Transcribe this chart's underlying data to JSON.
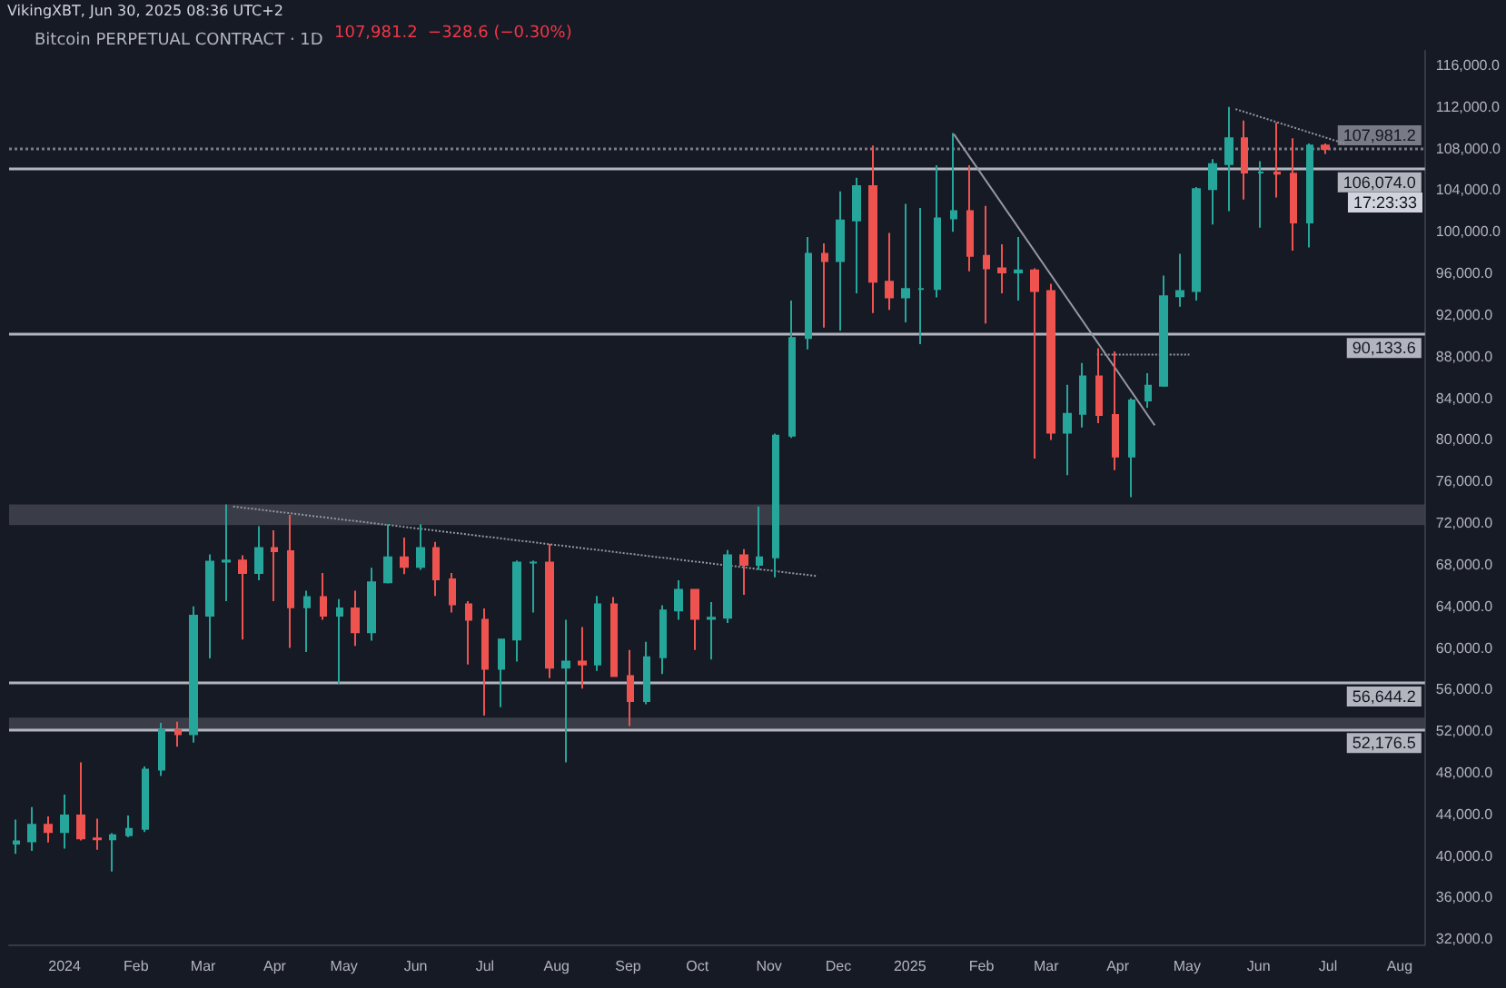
{
  "chart_data": {
    "type": "candlestick",
    "title": "Bitcoin PERPETUAL CONTRACT · 1D",
    "annotations": [
      "VikingXBT, Jun 30, 2025 08:36 UTC+2",
      "107,981.2  −328.6 (−0.30%)",
      "17:23:33"
    ],
    "x": [
      "2023-12-11",
      "2023-12-18",
      "2023-12-25",
      "2024-01-01",
      "2024-01-08",
      "2024-01-15",
      "2024-01-22",
      "2024-01-29",
      "2024-02-05",
      "2024-02-12",
      "2024-02-19",
      "2024-02-26",
      "2024-03-04",
      "2024-03-11",
      "2024-03-18",
      "2024-03-25",
      "2024-04-01",
      "2024-04-08",
      "2024-04-15",
      "2024-04-22",
      "2024-04-29",
      "2024-05-06",
      "2024-05-13",
      "2024-05-20",
      "2024-05-27",
      "2024-06-03",
      "2024-06-10",
      "2024-06-17",
      "2024-06-24",
      "2024-07-01",
      "2024-07-08",
      "2024-07-15",
      "2024-07-22",
      "2024-07-29",
      "2024-08-05",
      "2024-08-12",
      "2024-08-19",
      "2024-08-26",
      "2024-09-02",
      "2024-09-09",
      "2024-09-16",
      "2024-09-23",
      "2024-09-30",
      "2024-10-07",
      "2024-10-14",
      "2024-10-21",
      "2024-10-28",
      "2024-11-04",
      "2024-11-11",
      "2024-11-18",
      "2024-11-25",
      "2024-12-02",
      "2024-12-09",
      "2024-12-16",
      "2024-12-23",
      "2024-12-30",
      "2025-01-06",
      "2025-01-13",
      "2025-01-20",
      "2025-01-27",
      "2025-02-03",
      "2025-02-10",
      "2025-02-17",
      "2025-02-24",
      "2025-03-03",
      "2025-03-10",
      "2025-03-17",
      "2025-03-24",
      "2025-03-31",
      "2025-04-07",
      "2025-04-14",
      "2025-04-21",
      "2025-04-28",
      "2025-05-05",
      "2025-05-12",
      "2025-05-19",
      "2025-05-26",
      "2025-06-02",
      "2025-06-09",
      "2025-06-16",
      "2025-06-23",
      "2025-06-30"
    ],
    "ohlc": [
      [
        41200,
        43500,
        40200,
        41400
      ],
      [
        41400,
        44700,
        40500,
        43000
      ],
      [
        43000,
        43800,
        41300,
        42300
      ],
      [
        42300,
        45900,
        40700,
        43900
      ],
      [
        43900,
        49000,
        41500,
        41700
      ],
      [
        41700,
        43600,
        40600,
        41600
      ],
      [
        41600,
        42200,
        38500,
        42000
      ],
      [
        42000,
        43900,
        41800,
        42600
      ],
      [
        42600,
        48600,
        42300,
        48300
      ],
      [
        48300,
        52800,
        47700,
        52100
      ],
      [
        52100,
        52900,
        50500,
        51700
      ],
      [
        51700,
        64000,
        50900,
        63100
      ],
      [
        63100,
        69000,
        59000,
        68300
      ],
      [
        68300,
        73800,
        64500,
        68400
      ],
      [
        68400,
        68900,
        60800,
        67200
      ],
      [
        67200,
        71700,
        66500,
        69600
      ],
      [
        69600,
        71300,
        64500,
        69300
      ],
      [
        69300,
        72800,
        60000,
        63900
      ],
      [
        63900,
        65500,
        59600,
        64900
      ],
      [
        64900,
        67200,
        62700,
        63100
      ],
      [
        63100,
        64700,
        56500,
        63800
      ],
      [
        63800,
        65500,
        60200,
        61500
      ],
      [
        61500,
        67700,
        60700,
        66300
      ],
      [
        66300,
        71900,
        66200,
        68700
      ],
      [
        68700,
        70600,
        67100,
        67800
      ],
      [
        67800,
        71900,
        67500,
        69600
      ],
      [
        69600,
        70200,
        65000,
        66600
      ],
      [
        66600,
        67200,
        63400,
        64200
      ],
      [
        64200,
        64500,
        58400,
        62700
      ],
      [
        62700,
        63800,
        53500,
        58000
      ],
      [
        58000,
        60800,
        54300,
        60800
      ],
      [
        60800,
        68400,
        58700,
        68200
      ],
      [
        68200,
        68400,
        63400,
        68200
      ],
      [
        68200,
        70000,
        57100,
        58100
      ],
      [
        58100,
        62700,
        49000,
        58700
      ],
      [
        58700,
        62000,
        56100,
        58400
      ],
      [
        58400,
        65000,
        57800,
        64200
      ],
      [
        64200,
        64900,
        57200,
        57300
      ],
      [
        57300,
        59800,
        52500,
        54900
      ],
      [
        54900,
        60600,
        54600,
        59100
      ],
      [
        59100,
        64100,
        57500,
        63600
      ],
      [
        63600,
        66500,
        62700,
        65600
      ],
      [
        65600,
        65600,
        59800,
        62800
      ],
      [
        62800,
        64400,
        58900,
        62900
      ],
      [
        62900,
        69400,
        62400,
        68900
      ],
      [
        68900,
        69500,
        65100,
        68000
      ],
      [
        68000,
        73600,
        67500,
        68700
      ],
      [
        68700,
        80600,
        66800,
        80400
      ],
      [
        80400,
        93400,
        80200,
        89800
      ],
      [
        89800,
        99500,
        88700,
        97900
      ],
      [
        97900,
        98900,
        90800,
        97200
      ],
      [
        97200,
        103900,
        90500,
        101100
      ],
      [
        101100,
        105200,
        94100,
        104400
      ],
      [
        104400,
        108300,
        92200,
        95200
      ],
      [
        95200,
        99900,
        92500,
        93700
      ],
      [
        93700,
        102700,
        91300,
        94500
      ],
      [
        94500,
        102300,
        89200,
        94500
      ],
      [
        94500,
        106400,
        93700,
        101300
      ],
      [
        101300,
        109500,
        100000,
        102000
      ],
      [
        102000,
        106400,
        96200,
        97700
      ],
      [
        97700,
        102500,
        91200,
        96500
      ],
      [
        96500,
        98800,
        94100,
        96100
      ],
      [
        96100,
        99500,
        93400,
        96300
      ],
      [
        96300,
        96500,
        78200,
        94300
      ],
      [
        94300,
        95000,
        80000,
        80700
      ],
      [
        80700,
        85300,
        76600,
        82500
      ],
      [
        82500,
        87400,
        81200,
        86100
      ],
      [
        86100,
        88800,
        81600,
        82400
      ],
      [
        82400,
        88500,
        77100,
        78400
      ],
      [
        78400,
        84000,
        74500,
        83800
      ],
      [
        83800,
        86400,
        83100,
        85200
      ],
      [
        85200,
        95800,
        85100,
        93800
      ],
      [
        93800,
        97900,
        92800,
        94300
      ],
      [
        94300,
        104300,
        93400,
        104100
      ],
      [
        104100,
        107000,
        100700,
        106500
      ],
      [
        106500,
        112000,
        102000,
        109000
      ],
      [
        109000,
        110700,
        103100,
        105700
      ],
      [
        105700,
        106800,
        100400,
        105700
      ],
      [
        105700,
        110500,
        103300,
        105600
      ],
      [
        105600,
        109000,
        98200,
        100900
      ],
      [
        100900,
        108500,
        98500,
        108300
      ],
      [
        108300,
        108500,
        107500,
        107981.2
      ]
    ],
    "colors": [
      "#26a69a",
      "#26a69a",
      "#ef5350",
      "#26a69a",
      "#ef5350",
      "#ef5350",
      "#26a69a",
      "#26a69a",
      "#26a69a",
      "#26a69a",
      "#ef5350",
      "#26a69a",
      "#26a69a",
      "#26a69a",
      "#ef5350",
      "#26a69a",
      "#ef5350",
      "#ef5350",
      "#26a69a",
      "#ef5350",
      "#26a69a",
      "#ef5350",
      "#26a69a",
      "#26a69a",
      "#ef5350",
      "#26a69a",
      "#ef5350",
      "#ef5350",
      "#ef5350",
      "#ef5350",
      "#26a69a",
      "#26a69a",
      "#26a69a",
      "#ef5350",
      "#26a69a",
      "#ef5350",
      "#26a69a",
      "#ef5350",
      "#ef5350",
      "#26a69a",
      "#26a69a",
      "#26a69a",
      "#ef5350",
      "#26a69a",
      "#26a69a",
      "#ef5350",
      "#26a69a",
      "#26a69a",
      "#26a69a",
      "#26a69a",
      "#ef5350",
      "#26a69a",
      "#26a69a",
      "#ef5350",
      "#ef5350",
      "#26a69a",
      "#26a69a",
      "#26a69a",
      "#26a69a",
      "#ef5350",
      "#ef5350",
      "#ef5350",
      "#26a69a",
      "#ef5350",
      "#ef5350",
      "#26a69a",
      "#26a69a",
      "#ef5350",
      "#ef5350",
      "#26a69a",
      "#26a69a",
      "#26a69a",
      "#26a69a",
      "#26a69a",
      "#26a69a",
      "#26a69a",
      "#ef5350",
      "#26a69a",
      "#ef5350",
      "#ef5350",
      "#26a69a",
      "#ef5350"
    ],
    "series": [
      {
        "type": "line",
        "color": "#9598a1",
        "line_style": "dotted",
        "x": [
          "2024-03-14",
          "2024-11-22"
        ],
        "values": [
          73600,
          66900
        ]
      },
      {
        "type": "line",
        "color": "#9598a1",
        "line_style": "solid",
        "x": [
          "2025-01-20",
          "2025-04-17"
        ],
        "values": [
          109400,
          81400
        ]
      },
      {
        "type": "line",
        "color": "#9598a1",
        "line_style": "dotted",
        "x": [
          "2025-05-22",
          "2025-07-08"
        ],
        "values": [
          111800,
          108500
        ]
      },
      {
        "type": "line",
        "color": "#9598a1",
        "line_style": "dotted",
        "x": [
          "2025-03-23",
          "2025-05-02"
        ],
        "values": [
          88200,
          88200
        ]
      }
    ],
    "ref_lines": [
      {
        "axis": "y",
        "value": 107981.2,
        "label": "107,981.2",
        "color": "#787b86",
        "line_style": "dotted"
      },
      {
        "axis": "y",
        "value": 106074,
        "label": "106,074.0",
        "color": "#b2b5be",
        "line_style": "solid"
      },
      {
        "axis": "y",
        "value": 90133.6,
        "label": "90,133.6",
        "color": "#b2b5be",
        "line_style": "solid"
      },
      {
        "axis": "y",
        "value": 56644.2,
        "label": "56,644.2",
        "color": "#b2b5be",
        "line_style": "solid"
      },
      {
        "axis": "y",
        "value": 52176.5,
        "label": "52,176.5",
        "color": "#b2b5be",
        "line_style": "solid"
      }
    ],
    "bands": [
      {
        "axis": "y",
        "from": 71800,
        "to": 73800,
        "color": "#434651"
      },
      {
        "axis": "y",
        "from": 52100,
        "to": 53300,
        "color": "#434651"
      }
    ],
    "xlim": [
      "2023-12-08",
      "2025-08-12"
    ],
    "xticks": [
      {
        "value": "2024-01-01",
        "label": "2024"
      },
      {
        "value": "2024-02-01",
        "label": "Feb"
      },
      {
        "value": "2024-03-01",
        "label": "Mar"
      },
      {
        "value": "2024-04-01",
        "label": "Apr"
      },
      {
        "value": "2024-05-01",
        "label": "May"
      },
      {
        "value": "2024-06-01",
        "label": "Jun"
      },
      {
        "value": "2024-07-01",
        "label": "Jul"
      },
      {
        "value": "2024-08-01",
        "label": "Aug"
      },
      {
        "value": "2024-09-01",
        "label": "Sep"
      },
      {
        "value": "2024-10-01",
        "label": "Oct"
      },
      {
        "value": "2024-11-01",
        "label": "Nov"
      },
      {
        "value": "2024-12-01",
        "label": "Dec"
      },
      {
        "value": "2025-01-01",
        "label": "2025"
      },
      {
        "value": "2025-02-01",
        "label": "Feb"
      },
      {
        "value": "2025-03-01",
        "label": "Mar"
      },
      {
        "value": "2025-04-01",
        "label": "Apr"
      },
      {
        "value": "2025-05-01",
        "label": "May"
      },
      {
        "value": "2025-06-01",
        "label": "Jun"
      },
      {
        "value": "2025-07-01",
        "label": "Jul"
      },
      {
        "value": "2025-08-01",
        "label": "Aug"
      }
    ],
    "ylim": [
      31500,
      117400
    ],
    "yticks": [
      {
        "value": 32000,
        "label": "32,000.0"
      },
      {
        "value": 36000,
        "label": "36,000.0"
      },
      {
        "value": 40000,
        "label": "40,000.0"
      },
      {
        "value": 44000,
        "label": "44,000.0"
      },
      {
        "value": 48000,
        "label": "48,000.0"
      },
      {
        "value": 52000,
        "label": "52,000.0"
      },
      {
        "value": 56000,
        "label": "56,000.0"
      },
      {
        "value": 60000,
        "label": "60,000.0"
      },
      {
        "value": 64000,
        "label": "64,000.0"
      },
      {
        "value": 68000,
        "label": "68,000.0"
      },
      {
        "value": 72000,
        "label": "72,000.0"
      },
      {
        "value": 76000,
        "label": "76,000.0"
      },
      {
        "value": 80000,
        "label": "80,000.0"
      },
      {
        "value": 84000,
        "label": "84,000.0"
      },
      {
        "value": 88000,
        "label": "88,000.0"
      },
      {
        "value": 92000,
        "label": "92,000.0"
      },
      {
        "value": 96000,
        "label": "96,000.0"
      },
      {
        "value": 100000,
        "label": "100,000.0"
      },
      {
        "value": 104000,
        "label": "104,000.0"
      },
      {
        "value": 108000,
        "label": "108,000.0"
      },
      {
        "value": 112000,
        "label": "112,000.0"
      },
      {
        "value": 116000,
        "label": "116,000.0"
      }
    ],
    "grid": false
  }
}
